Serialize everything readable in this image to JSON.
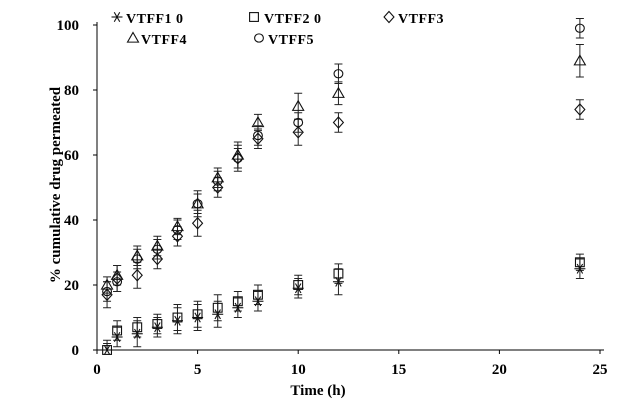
{
  "chart_data": {
    "type": "scatter",
    "xlabel": "Time (h)",
    "ylabel": "% cumulative drug permeated",
    "xlim": [
      0,
      25
    ],
    "ylim": [
      0,
      100
    ],
    "xticks": [
      0,
      5,
      10,
      15,
      20,
      25
    ],
    "yticks": [
      0,
      20,
      40,
      60,
      80,
      100
    ],
    "grid": false,
    "legend_position": "top-left",
    "series": [
      {
        "name": "VTFF1 0",
        "marker": "asterisk",
        "x": [
          0.5,
          1,
          2,
          3,
          4,
          5,
          6,
          7,
          8,
          10,
          12,
          24
        ],
        "y": [
          0,
          4,
          5,
          7,
          9,
          10,
          11,
          13,
          15,
          19,
          21,
          25
        ],
        "err": [
          2,
          3,
          4,
          3,
          4,
          4,
          4,
          3,
          3,
          3,
          4,
          3
        ]
      },
      {
        "name": "VTFF2 0",
        "marker": "square",
        "x": [
          0.5,
          1,
          2,
          3,
          4,
          5,
          6,
          7,
          8,
          10,
          12,
          24
        ],
        "y": [
          0,
          6,
          7,
          8,
          10,
          11,
          13,
          15,
          17,
          20,
          23.5,
          27
        ],
        "err": [
          3,
          3,
          3,
          3,
          4,
          4,
          4,
          3,
          3,
          3,
          3,
          2.5
        ]
      },
      {
        "name": "VTFF3",
        "marker": "diamond",
        "x": [
          0.5,
          1,
          2,
          3,
          4,
          5,
          6,
          7,
          8,
          10,
          12,
          24
        ],
        "y": [
          17,
          22,
          23,
          28,
          35,
          39,
          50,
          59,
          65,
          67,
          70,
          74
        ],
        "err": [
          4,
          4,
          4,
          3,
          3,
          4,
          3,
          4,
          3,
          4,
          3,
          3
        ]
      },
      {
        "name": "VTFF4",
        "marker": "triangle",
        "x": [
          0.5,
          1,
          2,
          3,
          4,
          5,
          6,
          7,
          8,
          10,
          12,
          24
        ],
        "y": [
          20,
          23,
          29,
          32,
          38,
          45,
          53,
          60,
          70,
          75,
          79,
          89
        ],
        "err": [
          2.5,
          3,
          3,
          3,
          2.5,
          4,
          3,
          4,
          2.5,
          4,
          3.5,
          5
        ]
      },
      {
        "name": "VTFF5",
        "marker": "circle",
        "x": [
          0.5,
          1,
          2,
          3,
          4,
          5,
          6,
          7,
          8,
          10,
          12,
          24
        ],
        "y": [
          18,
          21,
          28,
          31,
          37,
          45,
          52,
          59,
          66,
          70,
          85,
          99
        ],
        "err": [
          3,
          3,
          3,
          3,
          3,
          3,
          3,
          3,
          3,
          3,
          3,
          3
        ]
      }
    ]
  }
}
